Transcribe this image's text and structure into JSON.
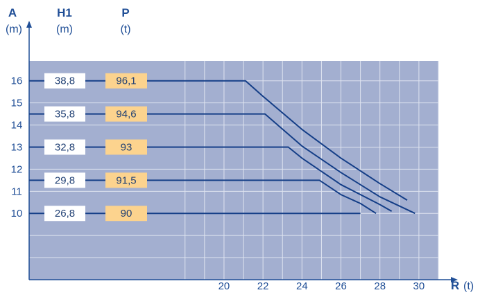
{
  "chart_data": {
    "type": "line",
    "x_axis": {
      "name": "R",
      "unit": "(t)",
      "range": [
        10,
        31
      ],
      "ticks": [
        20,
        22,
        24,
        26,
        28,
        30
      ]
    },
    "y_axis": {
      "range": [
        7,
        16.9
      ],
      "ticks": [
        10,
        11,
        12,
        13,
        14,
        15,
        16
      ]
    },
    "columns": [
      {
        "key": "A",
        "title": "A",
        "unit": "(m)"
      },
      {
        "key": "H1",
        "title": "H1",
        "unit": "(m)"
      },
      {
        "key": "P",
        "title": "P",
        "unit": "(t)"
      }
    ],
    "series": [
      {
        "A": 16,
        "H1": "38,8",
        "P": "96,1",
        "points": [
          [
            10,
            16
          ],
          [
            21.1,
            16
          ],
          [
            22,
            15.3
          ],
          [
            24,
            13.8
          ],
          [
            26,
            12.5
          ],
          [
            28,
            11.35
          ],
          [
            29.4,
            10.6
          ]
        ]
      },
      {
        "A": 14.5,
        "H1": "35,8",
        "P": "94,6",
        "points": [
          [
            10,
            14.5
          ],
          [
            22.1,
            14.5
          ],
          [
            24,
            13.05
          ],
          [
            26,
            11.85
          ],
          [
            28,
            10.75
          ],
          [
            29.8,
            10
          ]
        ]
      },
      {
        "A": 13,
        "H1": "32,8",
        "P": "93",
        "points": [
          [
            10,
            13
          ],
          [
            23.3,
            13
          ],
          [
            24,
            12.5
          ],
          [
            26,
            11.3
          ],
          [
            28,
            10.4
          ],
          [
            28.6,
            10.1
          ]
        ]
      },
      {
        "A": 11.5,
        "H1": "29,8",
        "P": "91,5",
        "points": [
          [
            10,
            11.5
          ],
          [
            24.9,
            11.5
          ],
          [
            26,
            10.85
          ],
          [
            27,
            10.45
          ],
          [
            27.8,
            10
          ]
        ]
      },
      {
        "A": 10,
        "H1": "26,8",
        "P": "90",
        "points": [
          [
            10,
            10
          ],
          [
            27,
            10
          ]
        ]
      }
    ],
    "colors": {
      "plot_bg": "#a3afd0",
      "grid": "#dfe4f0",
      "line": "#143e87",
      "axis": "#1f4e96",
      "h1_box": "#ffffff",
      "p_box": "#fcd38e"
    }
  }
}
